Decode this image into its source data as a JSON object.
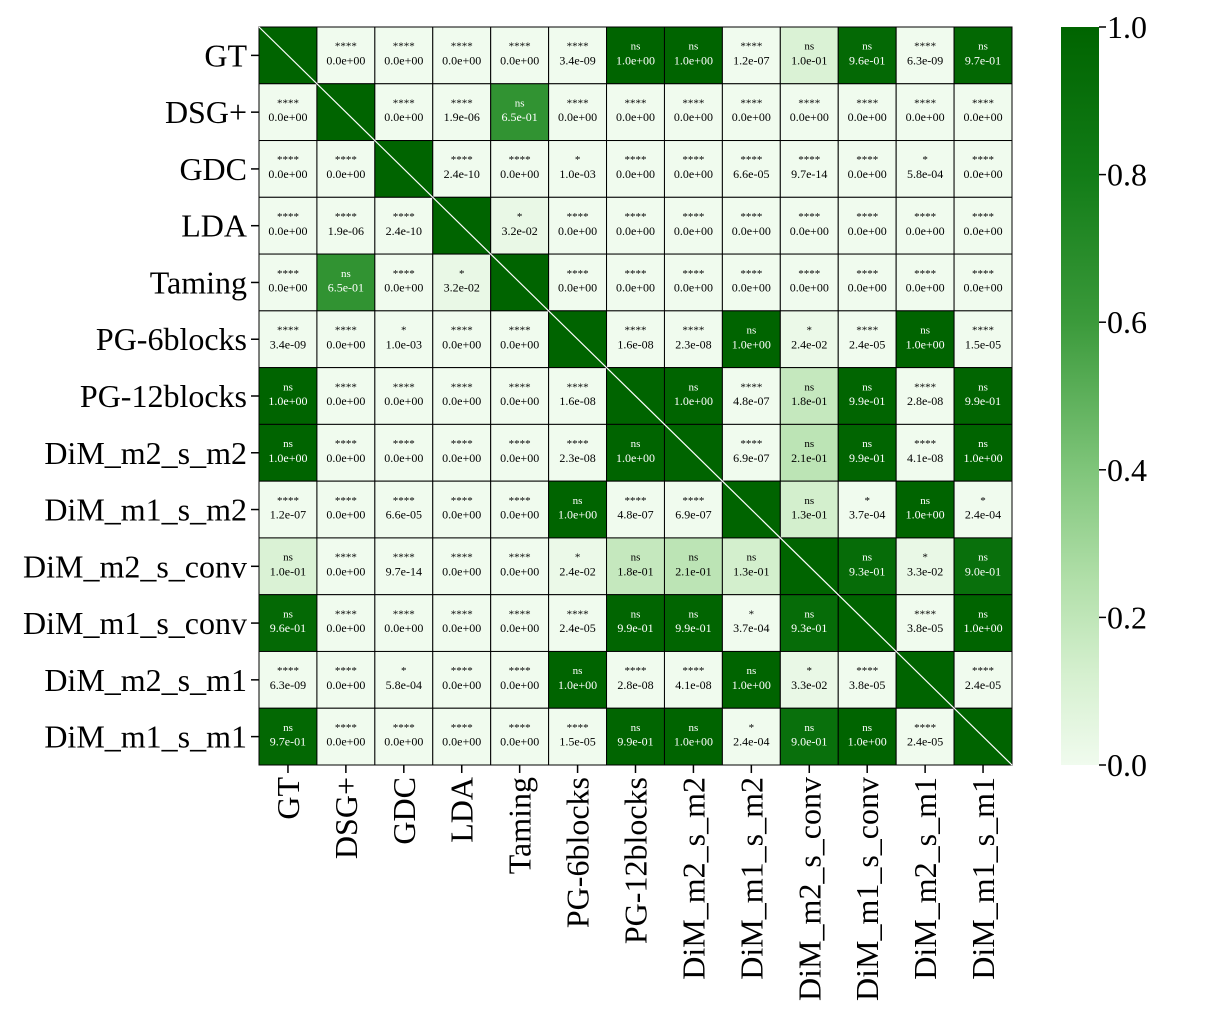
{
  "chart_data": {
    "type": "heatmap",
    "title": "",
    "xlabel": "",
    "ylabel": "",
    "labels": [
      "GT",
      "DSG+",
      "GDC",
      "LDA",
      "Taming",
      "PG-6blocks",
      "PG-12blocks",
      "DiM_m2_s_m2",
      "DiM_m1_s_m2",
      "DiM_m2_s_conv",
      "DiM_m1_s_conv",
      "DiM_m2_s_m1",
      "DiM_m1_s_m1"
    ],
    "pvalues": [
      [
        null,
        "0.0e+00",
        "0.0e+00",
        "0.0e+00",
        "0.0e+00",
        "3.4e-09",
        "1.0e+00",
        "1.0e+00",
        "1.2e-07",
        "1.0e-01",
        "9.6e-01",
        "6.3e-09",
        "9.7e-01"
      ],
      [
        "0.0e+00",
        null,
        "0.0e+00",
        "1.9e-06",
        "6.5e-01",
        "0.0e+00",
        "0.0e+00",
        "0.0e+00",
        "0.0e+00",
        "0.0e+00",
        "0.0e+00",
        "0.0e+00",
        "0.0e+00"
      ],
      [
        "0.0e+00",
        "0.0e+00",
        null,
        "2.4e-10",
        "0.0e+00",
        "1.0e-03",
        "0.0e+00",
        "0.0e+00",
        "6.6e-05",
        "9.7e-14",
        "0.0e+00",
        "5.8e-04",
        "0.0e+00"
      ],
      [
        "0.0e+00",
        "1.9e-06",
        "2.4e-10",
        null,
        "3.2e-02",
        "0.0e+00",
        "0.0e+00",
        "0.0e+00",
        "0.0e+00",
        "0.0e+00",
        "0.0e+00",
        "0.0e+00",
        "0.0e+00"
      ],
      [
        "0.0e+00",
        "6.5e-01",
        "0.0e+00",
        "3.2e-02",
        null,
        "0.0e+00",
        "0.0e+00",
        "0.0e+00",
        "0.0e+00",
        "0.0e+00",
        "0.0e+00",
        "0.0e+00",
        "0.0e+00"
      ],
      [
        "3.4e-09",
        "0.0e+00",
        "1.0e-03",
        "0.0e+00",
        "0.0e+00",
        null,
        "1.6e-08",
        "2.3e-08",
        "1.0e+00",
        "2.4e-02",
        "2.4e-05",
        "1.0e+00",
        "1.5e-05"
      ],
      [
        "1.0e+00",
        "0.0e+00",
        "0.0e+00",
        "0.0e+00",
        "0.0e+00",
        "1.6e-08",
        null,
        "1.0e+00",
        "4.8e-07",
        "1.8e-01",
        "9.9e-01",
        "2.8e-08",
        "9.9e-01"
      ],
      [
        "1.0e+00",
        "0.0e+00",
        "0.0e+00",
        "0.0e+00",
        "0.0e+00",
        "2.3e-08",
        "1.0e+00",
        null,
        "6.9e-07",
        "2.1e-01",
        "9.9e-01",
        "4.1e-08",
        "1.0e+00"
      ],
      [
        "1.2e-07",
        "0.0e+00",
        "6.6e-05",
        "0.0e+00",
        "0.0e+00",
        "1.0e+00",
        "4.8e-07",
        "6.9e-07",
        null,
        "1.3e-01",
        "3.7e-04",
        "1.0e+00",
        "2.4e-04"
      ],
      [
        "1.0e-01",
        "0.0e+00",
        "9.7e-14",
        "0.0e+00",
        "0.0e+00",
        "2.4e-02",
        "1.8e-01",
        "2.1e-01",
        "1.3e-01",
        null,
        "9.3e-01",
        "3.3e-02",
        "9.0e-01"
      ],
      [
        "9.6e-01",
        "0.0e+00",
        "0.0e+00",
        "0.0e+00",
        "0.0e+00",
        "2.4e-05",
        "9.9e-01",
        "9.9e-01",
        "3.7e-04",
        "9.3e-01",
        null,
        "3.8e-05",
        "1.0e+00"
      ],
      [
        "6.3e-09",
        "0.0e+00",
        "5.8e-04",
        "0.0e+00",
        "0.0e+00",
        "1.0e+00",
        "2.8e-08",
        "4.1e-08",
        "1.0e+00",
        "3.3e-02",
        "3.8e-05",
        null,
        "2.4e-05"
      ],
      [
        "9.7e-01",
        "0.0e+00",
        "0.0e+00",
        "0.0e+00",
        "0.0e+00",
        "1.5e-05",
        "9.9e-01",
        "1.0e+00",
        "2.4e-04",
        "9.0e-01",
        "1.0e+00",
        "2.4e-05",
        null
      ]
    ],
    "significance": [
      [
        null,
        "****",
        "****",
        "****",
        "****",
        "****",
        "ns",
        "ns",
        "****",
        "ns",
        "ns",
        "****",
        "ns"
      ],
      [
        "****",
        null,
        "****",
        "****",
        "ns",
        "****",
        "****",
        "****",
        "****",
        "****",
        "****",
        "****",
        "****"
      ],
      [
        "****",
        "****",
        null,
        "****",
        "****",
        "*",
        "****",
        "****",
        "****",
        "****",
        "****",
        "*",
        "****"
      ],
      [
        "****",
        "****",
        "****",
        null,
        "*",
        "****",
        "****",
        "****",
        "****",
        "****",
        "****",
        "****",
        "****"
      ],
      [
        "****",
        "ns",
        "****",
        "*",
        null,
        "****",
        "****",
        "****",
        "****",
        "****",
        "****",
        "****",
        "****"
      ],
      [
        "****",
        "****",
        "*",
        "****",
        "****",
        null,
        "****",
        "****",
        "ns",
        "*",
        "****",
        "ns",
        "****"
      ],
      [
        "ns",
        "****",
        "****",
        "****",
        "****",
        "****",
        null,
        "ns",
        "****",
        "ns",
        "ns",
        "****",
        "ns"
      ],
      [
        "ns",
        "****",
        "****",
        "****",
        "****",
        "****",
        "ns",
        null,
        "****",
        "ns",
        "ns",
        "****",
        "ns"
      ],
      [
        "****",
        "****",
        "****",
        "****",
        "****",
        "ns",
        "****",
        "****",
        null,
        "ns",
        "*",
        "ns",
        "*"
      ],
      [
        "ns",
        "****",
        "****",
        "****",
        "****",
        "*",
        "ns",
        "ns",
        "ns",
        null,
        "ns",
        "*",
        "ns"
      ],
      [
        "ns",
        "****",
        "****",
        "****",
        "****",
        "****",
        "ns",
        "ns",
        "*",
        "ns",
        null,
        "****",
        "ns"
      ],
      [
        "****",
        "****",
        "*",
        "****",
        "****",
        "ns",
        "****",
        "****",
        "ns",
        "*",
        "****",
        null,
        "****"
      ],
      [
        "ns",
        "****",
        "****",
        "****",
        "****",
        "****",
        "ns",
        "ns",
        "*",
        "ns",
        "ns",
        "****",
        null
      ]
    ],
    "diagonal_value": 1.0,
    "colorbar": {
      "range": [
        0.0,
        1.0
      ],
      "ticks": [
        "0.0",
        "0.2",
        "0.4",
        "0.6",
        "0.8",
        "1.0"
      ],
      "color_low": "#f0fbee",
      "color_high": "#006400"
    },
    "grid": true,
    "legend": "colorbar-right"
  }
}
